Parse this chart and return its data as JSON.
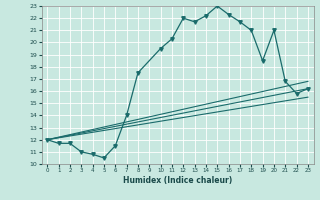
{
  "xlabel": "Humidex (Indice chaleur)",
  "bg_color": "#c8e8e0",
  "grid_color": "#ffffff",
  "line_color": "#1a6b6b",
  "xlim": [
    -0.5,
    23.5
  ],
  "ylim": [
    10,
    23
  ],
  "xticks": [
    0,
    1,
    2,
    3,
    4,
    5,
    6,
    7,
    8,
    9,
    10,
    11,
    12,
    13,
    14,
    15,
    16,
    17,
    18,
    19,
    20,
    21,
    22,
    23
  ],
  "yticks": [
    10,
    11,
    12,
    13,
    14,
    15,
    16,
    17,
    18,
    19,
    20,
    21,
    22,
    23
  ],
  "curve1_x": [
    0,
    1,
    2,
    3,
    4,
    5,
    6,
    7,
    8,
    10,
    11,
    12,
    13,
    14,
    15,
    16,
    17,
    18,
    19,
    20,
    21,
    22,
    23
  ],
  "curve1_y": [
    12,
    11.7,
    11.7,
    11.0,
    10.8,
    10.5,
    11.5,
    14.0,
    17.5,
    19.5,
    20.3,
    22.0,
    21.7,
    22.2,
    23.0,
    22.3,
    21.7,
    21.0,
    18.5,
    21.0,
    16.8,
    15.8,
    16.2
  ],
  "line1_x": [
    0,
    23
  ],
  "line1_y": [
    12,
    16.2
  ],
  "line2_x": [
    0,
    23
  ],
  "line2_y": [
    12,
    15.5
  ],
  "line3_x": [
    0,
    23
  ],
  "line3_y": [
    12,
    16.8
  ]
}
